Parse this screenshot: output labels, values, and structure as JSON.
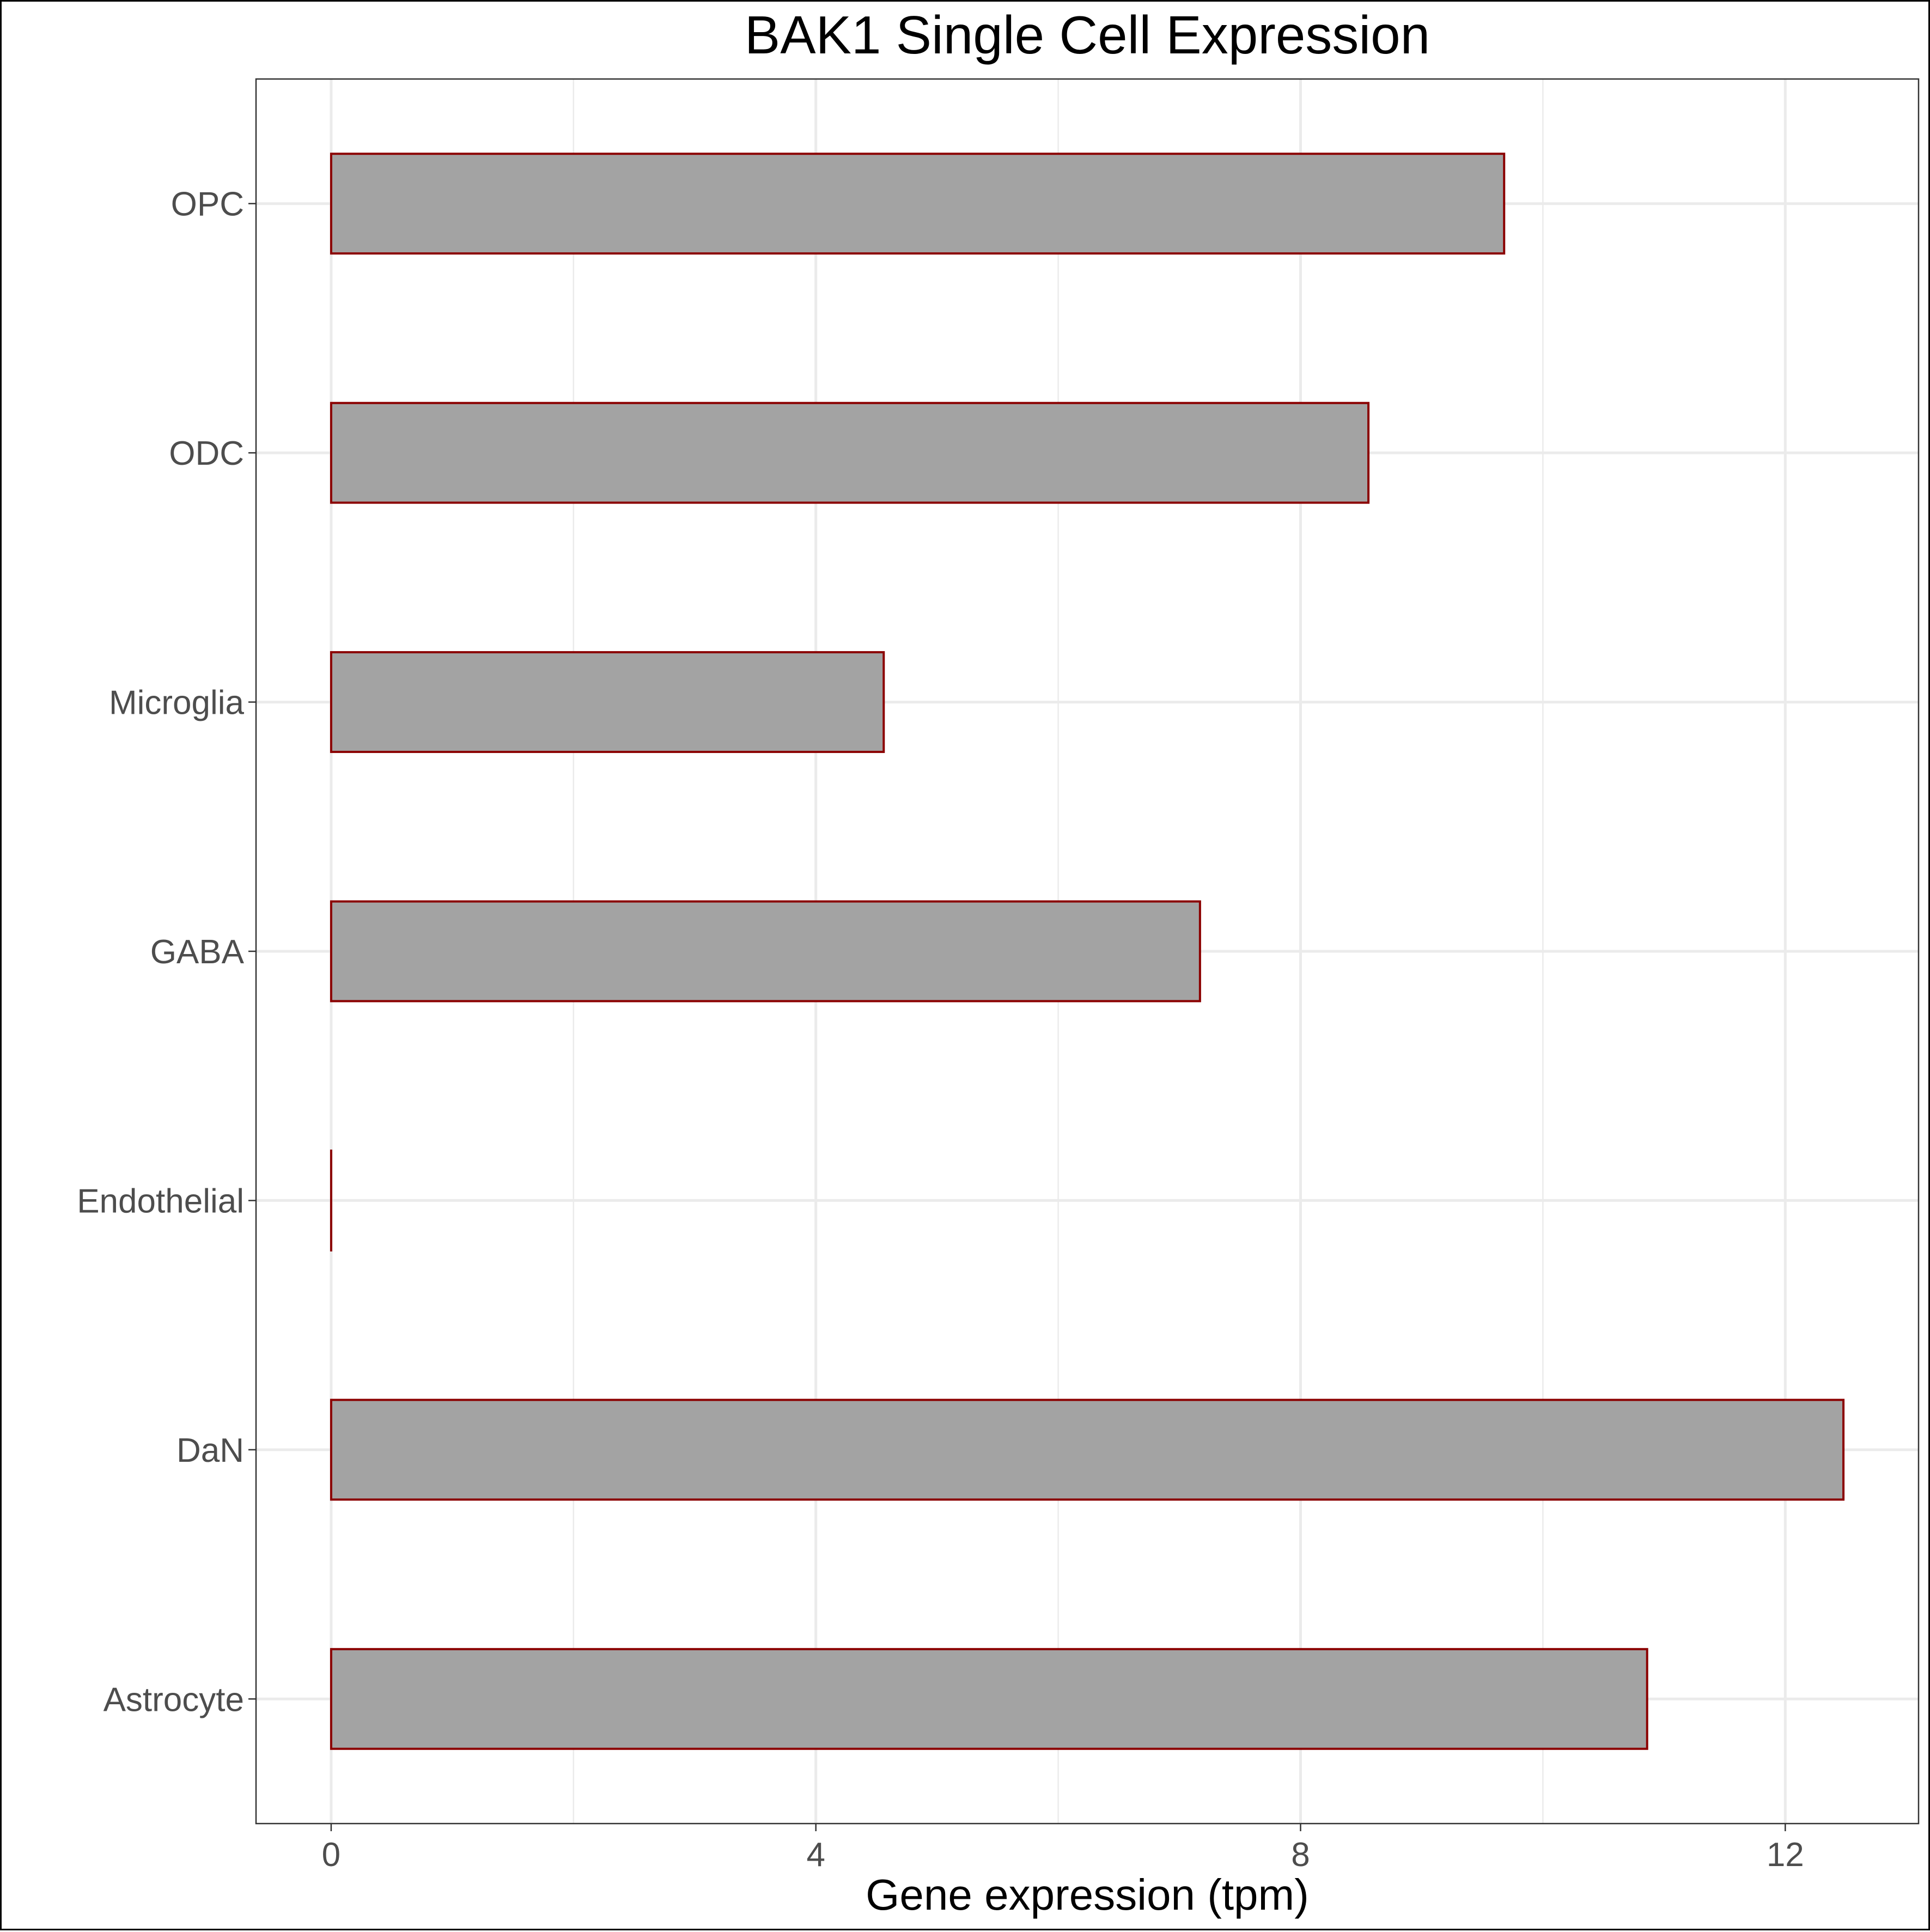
{
  "chart_data": {
    "type": "bar",
    "orientation": "horizontal",
    "title": "BAK1 Single Cell Expression",
    "xlabel": "Gene expression (tpm)",
    "ylabel": "",
    "categories": [
      "Astrocyte",
      "DaN",
      "Endothelial",
      "GABA",
      "Microglia",
      "ODC",
      "OPC"
    ],
    "values": [
      10.86,
      12.48,
      0.0,
      7.17,
      4.56,
      8.56,
      9.68
    ],
    "xlim": [
      -0.62,
      13.1
    ],
    "xticks": [
      0,
      4,
      8,
      12
    ],
    "grid": true,
    "legend": "none",
    "colors": {
      "bar_fill": "#a3a3a3",
      "bar_outline": "#8b0000",
      "grid": "#ebebeb",
      "panel_border": "#333333",
      "tick_label": "#4d4d4d",
      "title": "#000000"
    }
  }
}
